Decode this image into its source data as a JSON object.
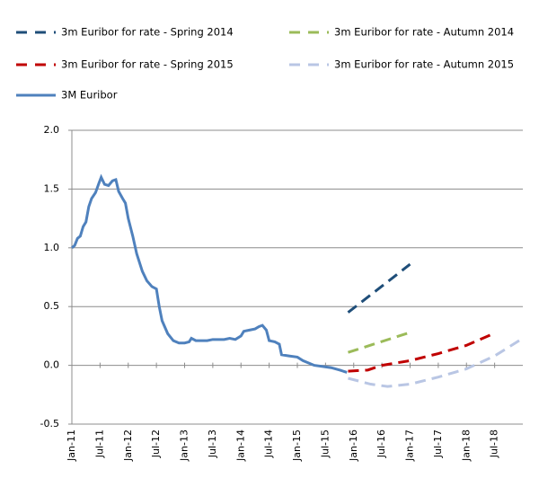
{
  "chart_data": {
    "type": "line",
    "xlim": [
      2011,
      2019
    ],
    "xticks": [
      {
        "value": 2011,
        "label": "Jan-11"
      },
      {
        "value": 2011.5,
        "label": "Jul-11"
      },
      {
        "value": 2012,
        "label": "Jan-12"
      },
      {
        "value": 2012.5,
        "label": "Jul-12"
      },
      {
        "value": 2013,
        "label": "Jan-13"
      },
      {
        "value": 2013.5,
        "label": "Jul-13"
      },
      {
        "value": 2014,
        "label": "Jan-14"
      },
      {
        "value": 2014.5,
        "label": "Jul-14"
      },
      {
        "value": 2015,
        "label": "Jan-15"
      },
      {
        "value": 2015.5,
        "label": "Jul-15"
      },
      {
        "value": 2016,
        "label": "Jan-16"
      },
      {
        "value": 2016.5,
        "label": "Jul-16"
      },
      {
        "value": 2017,
        "label": "Jan-17"
      },
      {
        "value": 2017.5,
        "label": "Jul-17"
      },
      {
        "value": 2018,
        "label": "Jan-18"
      },
      {
        "value": 2018.5,
        "label": "Jul-18"
      }
    ],
    "ylim": [
      -0.5,
      2.0
    ],
    "yticks": [
      {
        "value": -0.5,
        "label": "-0.5"
      },
      {
        "value": 0,
        "label": "0.0"
      },
      {
        "value": 0.5,
        "label": "0.5"
      },
      {
        "value": 1,
        "label": "1.0"
      },
      {
        "value": 1.5,
        "label": "1.5"
      },
      {
        "value": 2,
        "label": "2.0"
      }
    ],
    "grid": true,
    "series": [
      {
        "name": "3m Euribor for rate - Spring 2014",
        "color": "#1f4e79",
        "dashed": true,
        "x": [
          2015.9,
          2017.0
        ],
        "values": [
          0.45,
          0.86
        ]
      },
      {
        "name": "3m Euribor for rate - Autumn 2014",
        "color": "#9bbb59",
        "dashed": true,
        "x": [
          2015.9,
          2017.0
        ],
        "values": [
          0.11,
          0.28
        ]
      },
      {
        "name": "3m Euribor for rate - Spring 2015",
        "color": "#c00000",
        "dashed": true,
        "x": [
          2015.9,
          2016.25,
          2016.5,
          2017.0,
          2017.5,
          2018.0,
          2018.48
        ],
        "values": [
          -0.05,
          -0.04,
          0.0,
          0.04,
          0.1,
          0.17,
          0.27
        ]
      },
      {
        "name": "3m Euribor for rate - Autumn 2015",
        "color": "#b9c6e4",
        "dashed": true,
        "x": [
          2015.9,
          2016.3,
          2016.6,
          2017.0,
          2017.5,
          2018.0,
          2018.5,
          2019.0
        ],
        "values": [
          -0.11,
          -0.16,
          -0.18,
          -0.16,
          -0.1,
          -0.03,
          0.08,
          0.23
        ]
      },
      {
        "name": "3M Euribor",
        "color": "#4f81bd",
        "dashed": false,
        "x": [
          2011.0,
          2011.05,
          2011.1,
          2011.15,
          2011.2,
          2011.25,
          2011.3,
          2011.35,
          2011.42,
          2011.48,
          2011.52,
          2011.58,
          2011.65,
          2011.72,
          2011.78,
          2011.83,
          2011.9,
          2011.95,
          2012.0,
          2012.08,
          2012.15,
          2012.25,
          2012.33,
          2012.42,
          2012.5,
          2012.55,
          2012.6,
          2012.7,
          2012.8,
          2012.9,
          2013.0,
          2013.08,
          2013.12,
          2013.2,
          2013.3,
          2013.4,
          2013.5,
          2013.6,
          2013.7,
          2013.8,
          2013.9,
          2014.0,
          2014.05,
          2014.15,
          2014.25,
          2014.32,
          2014.38,
          2014.45,
          2014.5,
          2014.6,
          2014.68,
          2014.72,
          2014.85,
          2015.0,
          2015.1,
          2015.2,
          2015.3,
          2015.45,
          2015.6,
          2015.75,
          2015.88
        ],
        "values": [
          1.0,
          1.02,
          1.08,
          1.1,
          1.18,
          1.22,
          1.35,
          1.42,
          1.47,
          1.55,
          1.6,
          1.54,
          1.53,
          1.57,
          1.58,
          1.48,
          1.42,
          1.38,
          1.25,
          1.1,
          0.95,
          0.8,
          0.72,
          0.67,
          0.65,
          0.5,
          0.38,
          0.27,
          0.21,
          0.19,
          0.19,
          0.2,
          0.23,
          0.21,
          0.21,
          0.21,
          0.22,
          0.22,
          0.22,
          0.23,
          0.22,
          0.25,
          0.29,
          0.3,
          0.31,
          0.33,
          0.34,
          0.3,
          0.21,
          0.2,
          0.18,
          0.09,
          0.08,
          0.07,
          0.04,
          0.02,
          0.0,
          -0.01,
          -0.02,
          -0.04,
          -0.06
        ]
      }
    ]
  }
}
